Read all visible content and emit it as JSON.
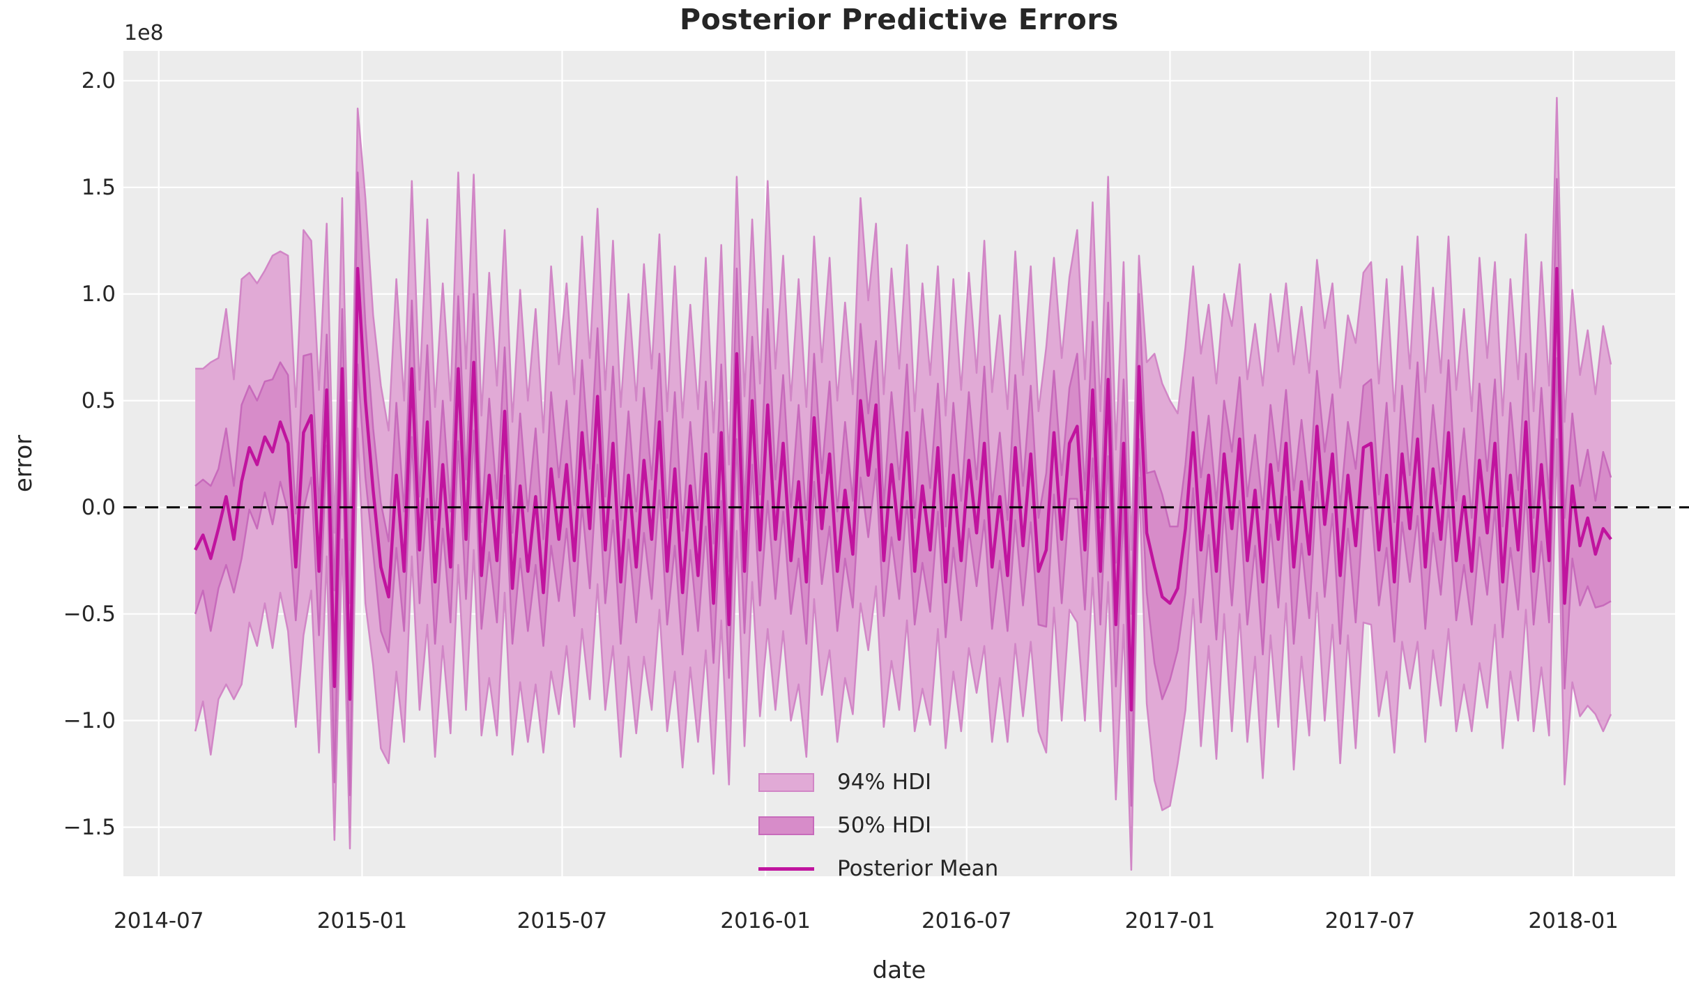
{
  "title": "Posterior Predictive Errors",
  "axes": {
    "xlabel": "date",
    "ylabel": "error",
    "offset_text": "1e8"
  },
  "legend": {
    "hdi94_label": "94% HDI",
    "hdi50_label": "50% HDI",
    "mean_label": "Posterior Mean",
    "position": "lower center"
  },
  "colors": {
    "figure_background": "#ffffff",
    "axes_background": "#ececec",
    "gridline": "#ffffff",
    "hdi94_fill": "#e1aad6",
    "hdi94_edge": "#d186c6",
    "hdi50_fill": "#d78cc9",
    "hdi50_edge": "#c76abb",
    "posterior_mean_line": "#c0149e",
    "reference_line": "#000000",
    "text": "#262626"
  },
  "chart_data": {
    "type": "line",
    "title": "Posterior Predictive Errors",
    "xlabel": "date",
    "ylabel": "error",
    "grid": true,
    "legend_position": "lower center",
    "y_unit_multiplier": 100000000,
    "y_offset_text": "1e8",
    "ylim": [
      -1.73,
      2.14
    ],
    "y_ticks": [
      2.0,
      1.5,
      1.0,
      0.5,
      0.0,
      -0.5,
      -1.0,
      -1.5
    ],
    "y_tick_labels": [
      "2.0",
      "1.5",
      "1.0",
      "0.5",
      "0.0",
      "−0.5",
      "−1.0",
      "−1.5"
    ],
    "x_axis": {
      "origin_date": "2014-07-01",
      "data_start_day": 33,
      "interval_days": 7,
      "n_points": 184,
      "xlim_days": [
        -32,
        1372
      ],
      "tick_days": [
        0,
        184,
        365,
        549,
        731,
        915,
        1096,
        1280
      ],
      "tick_labels": [
        "2014-07",
        "2015-01",
        "2015-07",
        "2016-01",
        "2016-07",
        "2017-01",
        "2017-07",
        "2018-01"
      ]
    },
    "bands_definition": "band_lower = mean - half_width, band_upper = mean + half_width (units of 1e8)",
    "reference_line": {
      "y": 0.0,
      "style": "dashed",
      "color": "#000000"
    },
    "series": [
      {
        "name": "Posterior Mean",
        "type": "line",
        "color": "#c0149e",
        "values": [
          -0.2,
          -0.13,
          -0.24,
          -0.1,
          0.05,
          -0.15,
          0.12,
          0.28,
          0.2,
          0.33,
          0.26,
          0.4,
          0.3,
          -0.28,
          0.35,
          0.43,
          -0.3,
          0.55,
          -0.84,
          0.65,
          -0.9,
          1.12,
          0.5,
          0.08,
          -0.28,
          -0.42,
          0.15,
          -0.3,
          0.65,
          -0.2,
          0.4,
          -0.35,
          0.2,
          -0.28,
          0.65,
          -0.15,
          0.68,
          -0.32,
          0.15,
          -0.25,
          0.45,
          -0.38,
          0.1,
          -0.3,
          0.05,
          -0.4,
          0.18,
          -0.15,
          0.2,
          -0.25,
          0.35,
          -0.1,
          0.52,
          -0.2,
          0.3,
          -0.35,
          0.15,
          -0.28,
          0.22,
          -0.15,
          0.4,
          -0.3,
          0.18,
          -0.4,
          0.1,
          -0.32,
          0.25,
          -0.45,
          0.35,
          -0.55,
          0.72,
          -0.3,
          0.5,
          -0.2,
          0.48,
          -0.15,
          0.3,
          -0.25,
          0.12,
          -0.35,
          0.42,
          -0.1,
          0.25,
          -0.3,
          0.08,
          -0.22,
          0.5,
          0.15,
          0.48,
          -0.25,
          0.2,
          -0.15,
          0.35,
          -0.3,
          0.1,
          -0.2,
          0.28,
          -0.35,
          0.15,
          -0.25,
          0.22,
          -0.12,
          0.3,
          -0.28,
          0.05,
          -0.32,
          0.28,
          -0.18,
          0.25,
          -0.3,
          -0.2,
          0.35,
          -0.15,
          0.3,
          0.38,
          -0.2,
          0.55,
          -0.3,
          0.6,
          -0.55,
          0.3,
          -0.95,
          0.66,
          -0.12,
          -0.28,
          -0.42,
          -0.45,
          -0.38,
          -0.1,
          0.35,
          -0.2,
          0.15,
          -0.3,
          0.25,
          -0.1,
          0.32,
          -0.25,
          0.08,
          -0.35,
          0.2,
          -0.15,
          0.3,
          -0.28,
          0.12,
          -0.22,
          0.38,
          -0.08,
          0.25,
          -0.32,
          0.15,
          -0.18,
          0.28,
          0.3,
          -0.2,
          0.15,
          -0.35,
          0.25,
          -0.1,
          0.32,
          -0.28,
          0.18,
          -0.15,
          0.35,
          -0.25,
          0.05,
          -0.3,
          0.22,
          -0.12,
          0.3,
          -0.35,
          0.15,
          -0.2,
          0.4,
          -0.3,
          0.2,
          -0.25,
          1.12,
          -0.45,
          0.1,
          -0.18,
          -0.05,
          -0.22,
          -0.1,
          -0.15
        ]
      },
      {
        "name": "50% HDI half-width",
        "type": "band_halfwidth",
        "fill": "#d78cc9",
        "edge": "#c76abb",
        "values": [
          0.3,
          0.26,
          0.34,
          0.28,
          0.32,
          0.25,
          0.36,
          0.29,
          0.3,
          0.26,
          0.34,
          0.28,
          0.32,
          0.25,
          0.36,
          0.29,
          0.3,
          0.26,
          0.45,
          0.28,
          0.45,
          0.45,
          0.36,
          0.29,
          0.3,
          0.26,
          0.34,
          0.28,
          0.32,
          0.25,
          0.36,
          0.29,
          0.3,
          0.26,
          0.34,
          0.28,
          0.32,
          0.25,
          0.36,
          0.29,
          0.3,
          0.26,
          0.34,
          0.28,
          0.32,
          0.25,
          0.36,
          0.29,
          0.3,
          0.26,
          0.34,
          0.28,
          0.32,
          0.25,
          0.36,
          0.29,
          0.3,
          0.26,
          0.34,
          0.28,
          0.32,
          0.25,
          0.36,
          0.29,
          0.3,
          0.26,
          0.34,
          0.28,
          0.32,
          0.25,
          0.4,
          0.29,
          0.3,
          0.26,
          0.45,
          0.28,
          0.32,
          0.25,
          0.36,
          0.29,
          0.3,
          0.26,
          0.34,
          0.28,
          0.32,
          0.25,
          0.36,
          0.29,
          0.3,
          0.26,
          0.34,
          0.28,
          0.32,
          0.25,
          0.36,
          0.29,
          0.3,
          0.26,
          0.34,
          0.28,
          0.32,
          0.25,
          0.36,
          0.29,
          0.3,
          0.26,
          0.34,
          0.28,
          0.32,
          0.25,
          0.36,
          0.29,
          0.3,
          0.26,
          0.34,
          0.28,
          0.32,
          0.25,
          0.36,
          0.29,
          0.3,
          0.45,
          0.34,
          0.28,
          0.45,
          0.48,
          0.36,
          0.29,
          0.3,
          0.26,
          0.34,
          0.28,
          0.32,
          0.25,
          0.36,
          0.29,
          0.3,
          0.26,
          0.34,
          0.28,
          0.32,
          0.25,
          0.36,
          0.29,
          0.3,
          0.26,
          0.34,
          0.28,
          0.32,
          0.25,
          0.36,
          0.29,
          0.3,
          0.26,
          0.34,
          0.28,
          0.32,
          0.25,
          0.36,
          0.29,
          0.3,
          0.26,
          0.34,
          0.28,
          0.32,
          0.25,
          0.36,
          0.29,
          0.3,
          0.26,
          0.34,
          0.28,
          0.32,
          0.25,
          0.36,
          0.29,
          0.42,
          0.4,
          0.34,
          0.28,
          0.32,
          0.25,
          0.36,
          0.29
        ]
      },
      {
        "name": "94% HDI half-width",
        "type": "band_halfwidth",
        "fill": "#e1aad6",
        "edge": "#d186c6",
        "values": [
          0.85,
          0.78,
          0.92,
          0.8,
          0.88,
          0.75,
          0.95,
          0.82,
          0.85,
          0.78,
          0.92,
          0.8,
          0.88,
          0.75,
          0.95,
          0.82,
          0.85,
          0.78,
          0.72,
          0.8,
          0.7,
          0.75,
          0.95,
          0.82,
          0.85,
          0.78,
          0.92,
          0.8,
          0.88,
          0.75,
          0.95,
          0.82,
          0.85,
          0.78,
          0.92,
          0.8,
          0.88,
          0.75,
          0.95,
          0.82,
          0.85,
          0.78,
          0.92,
          0.8,
          0.88,
          0.75,
          0.95,
          0.82,
          0.85,
          0.78,
          0.92,
          0.8,
          0.88,
          0.75,
          0.95,
          0.82,
          0.85,
          0.78,
          0.92,
          0.8,
          0.88,
          0.75,
          0.95,
          0.82,
          0.85,
          0.78,
          0.92,
          0.8,
          0.88,
          0.75,
          0.83,
          0.82,
          0.85,
          0.78,
          1.05,
          0.8,
          0.88,
          0.75,
          0.95,
          0.82,
          0.85,
          0.78,
          0.92,
          0.8,
          0.88,
          0.75,
          0.95,
          0.82,
          0.85,
          0.78,
          0.92,
          0.8,
          0.88,
          0.75,
          0.95,
          0.82,
          0.85,
          0.78,
          0.92,
          0.8,
          0.88,
          0.75,
          0.95,
          0.82,
          0.85,
          0.78,
          0.92,
          0.8,
          0.88,
          0.75,
          0.95,
          0.82,
          0.85,
          0.78,
          0.92,
          0.8,
          0.88,
          0.75,
          0.95,
          0.82,
          0.85,
          0.75,
          0.52,
          0.8,
          1.0,
          1.0,
          0.95,
          0.82,
          0.85,
          0.78,
          0.92,
          0.8,
          0.88,
          0.75,
          0.95,
          0.82,
          0.85,
          0.78,
          0.92,
          0.8,
          0.88,
          0.75,
          0.95,
          0.82,
          0.85,
          0.78,
          0.92,
          0.8,
          0.88,
          0.75,
          0.95,
          0.82,
          0.85,
          0.78,
          0.92,
          0.8,
          0.88,
          0.75,
          0.95,
          0.82,
          0.85,
          0.78,
          0.92,
          0.8,
          0.88,
          0.75,
          0.95,
          0.82,
          0.85,
          0.78,
          0.92,
          0.8,
          0.88,
          0.75,
          0.95,
          0.82,
          0.8,
          0.85,
          0.92,
          0.8,
          0.88,
          0.75,
          0.95,
          0.82
        ]
      }
    ]
  }
}
